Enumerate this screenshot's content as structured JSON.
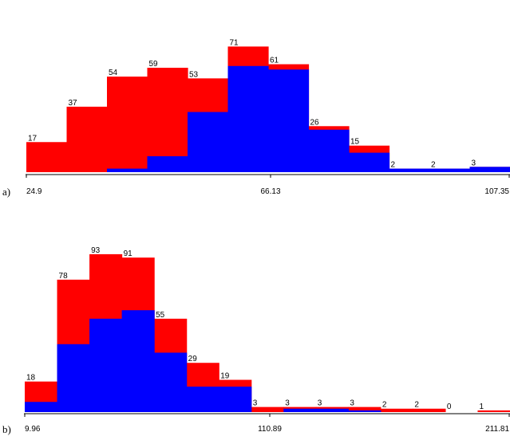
{
  "chart_data": [
    {
      "type": "bar",
      "panel_label": "a)",
      "x_ticks": [
        "24.9",
        "66.13",
        "107.35"
      ],
      "bins": 12,
      "counts": [
        17,
        37,
        54,
        59,
        53,
        71,
        61,
        26,
        15,
        2,
        2,
        3
      ],
      "subset_counts": [
        0,
        0,
        2,
        9,
        34,
        60,
        58,
        24,
        11,
        2,
        2,
        3
      ],
      "colors": {
        "total": "#ff0000",
        "subset": "#0000ff"
      },
      "grid": false
    },
    {
      "type": "bar",
      "panel_label": "b)",
      "x_ticks": [
        "9.96",
        "110.89",
        "211.81"
      ],
      "bins": 15,
      "counts": [
        18,
        78,
        93,
        91,
        55,
        29,
        19,
        3,
        3,
        3,
        3,
        2,
        2,
        0,
        1
      ],
      "subset_counts": [
        6,
        40,
        55,
        60,
        35,
        15,
        15,
        0,
        2,
        2,
        1,
        0,
        0,
        0,
        0
      ],
      "colors": {
        "total": "#ff0000",
        "subset": "#0000ff"
      },
      "grid": false
    }
  ]
}
